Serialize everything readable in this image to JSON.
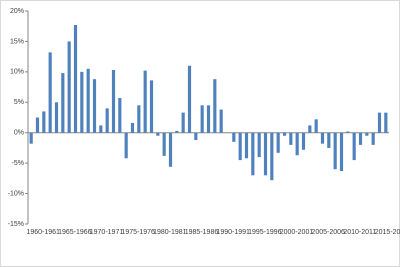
{
  "chart_data": {
    "type": "bar",
    "categories": [
      "1960-1961",
      null,
      null,
      null,
      null,
      "1965-1966",
      null,
      null,
      null,
      null,
      "1970-1971",
      null,
      null,
      null,
      null,
      "1975-1976",
      null,
      null,
      null,
      null,
      "1980-1981",
      null,
      null,
      null,
      null,
      "1985-1986",
      null,
      null,
      null,
      null,
      "1990-1991",
      null,
      null,
      null,
      null,
      "1995-1996",
      null,
      null,
      null,
      null,
      "2000-2001",
      null,
      null,
      null,
      null,
      "2005-2006",
      null,
      null,
      null,
      null,
      "2010-2011",
      null,
      null,
      null,
      null,
      "2015-2016",
      null
    ],
    "values": [
      -1.8,
      2.5,
      3.5,
      13.2,
      5,
      9.8,
      15,
      17.7,
      10,
      10.5,
      8.8,
      1.2,
      4,
      10.3,
      5.7,
      -4.2,
      1.6,
      4.5,
      10.2,
      8.6,
      -0.5,
      -3.8,
      -5.6,
      0.3,
      3.3,
      11,
      -1.2,
      4.5,
      4.5,
      8.8,
      3.8,
      0,
      -1.5,
      -4.5,
      -4.2,
      -7,
      -4,
      -7,
      -7.8,
      -3.3,
      -0.5,
      -2,
      -3.7,
      -2.8,
      1.2,
      2.2,
      -1.8,
      -2.5,
      -6,
      -6.3,
      0.2,
      -4.5,
      -2,
      -0.5,
      -2,
      3.3,
      3.3
    ],
    "color": "#4f81bd",
    "ylim": [
      -15,
      20
    ],
    "yticks": [
      {
        "value": -15,
        "label": "-15%"
      },
      {
        "value": -10,
        "label": "-10%"
      },
      {
        "value": -5,
        "label": "-5%"
      },
      {
        "value": 0,
        "label": "0%"
      },
      {
        "value": 5,
        "label": "5%"
      },
      {
        "value": 10,
        "label": "10%"
      },
      {
        "value": 15,
        "label": "15%"
      },
      {
        "value": 20,
        "label": "20%"
      }
    ]
  }
}
